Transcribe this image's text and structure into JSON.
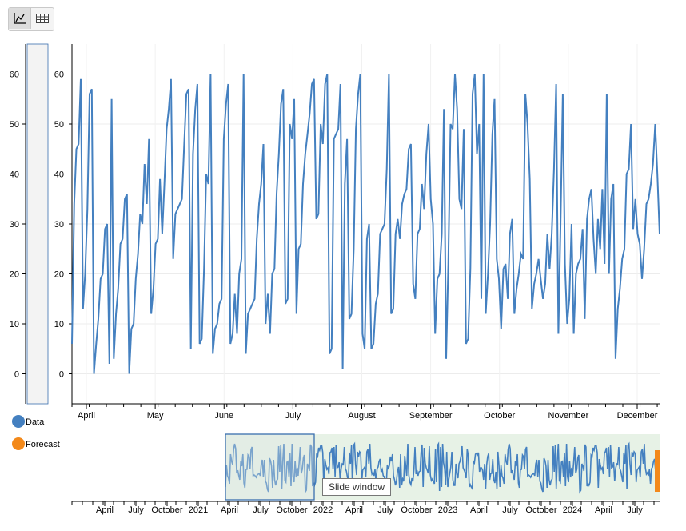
{
  "toolbar": {
    "buttons": [
      {
        "icon": "line-chart-icon",
        "active": true
      },
      {
        "icon": "table-icon",
        "active": false
      }
    ]
  },
  "legend": [
    {
      "label": "Data",
      "color": "#4480c0"
    },
    {
      "label": "Forecast",
      "color": "#f3891a"
    }
  ],
  "tooltip": "Slide window",
  "chart_data": [
    {
      "type": "line",
      "ylim": [
        -6,
        66
      ],
      "yticks": [
        0,
        10,
        20,
        30,
        40,
        50,
        60
      ],
      "xlabels": [
        "April",
        "May",
        "June",
        "July",
        "August",
        "September",
        "October",
        "November",
        "December"
      ],
      "grid": true,
      "series": [
        {
          "color": "#4480c0",
          "values": [
            6,
            34,
            45,
            46,
            59,
            13,
            20,
            33,
            56,
            57,
            0,
            6,
            11,
            19,
            20,
            29,
            30,
            2,
            55,
            3,
            12,
            17,
            26,
            27,
            35,
            36,
            0,
            9,
            10,
            19,
            24,
            32,
            30,
            42,
            34,
            47,
            12,
            17,
            26,
            27,
            39,
            28,
            38,
            49,
            53,
            59,
            23,
            32,
            33,
            34,
            35,
            46,
            56,
            57,
            5,
            44,
            53,
            58,
            6,
            7,
            21,
            40,
            38,
            60,
            4,
            9,
            10,
            14,
            15,
            47,
            54,
            58,
            6,
            8,
            16,
            8,
            20,
            23,
            60,
            4,
            12,
            13,
            14,
            15,
            27,
            34,
            38,
            46,
            10,
            16,
            8,
            20,
            21,
            36,
            44,
            54,
            57,
            14,
            15,
            50,
            47,
            55,
            12,
            25,
            26,
            38,
            44,
            48,
            52,
            58,
            59,
            31,
            32,
            50,
            46,
            58,
            60,
            4,
            5,
            47,
            48,
            49,
            58,
            1,
            38,
            47,
            11,
            12,
            25,
            49,
            56,
            60,
            8,
            5,
            27,
            30,
            5,
            6,
            14,
            16,
            28,
            29,
            30,
            41,
            60,
            12,
            13,
            28,
            31,
            27,
            34,
            36,
            37,
            45,
            46,
            18,
            15,
            28,
            29,
            38,
            33,
            44,
            50,
            35,
            30,
            8,
            19,
            20,
            28,
            53,
            3,
            22,
            50,
            49,
            60,
            53,
            35,
            33,
            49,
            6,
            7,
            21,
            56,
            60,
            44,
            50,
            15,
            60,
            12,
            20,
            30,
            48,
            55,
            23,
            19,
            9,
            21,
            22,
            15,
            28,
            31,
            12,
            17,
            20,
            24,
            23,
            56,
            50,
            39,
            13,
            18,
            20,
            23,
            19,
            15,
            18,
            28,
            21,
            28,
            41,
            58,
            8,
            30,
            56,
            22,
            10,
            15,
            30,
            8,
            20,
            22,
            23,
            29,
            11,
            31,
            35,
            37,
            27,
            20,
            31,
            25,
            37,
            22,
            56,
            20,
            35,
            38,
            3,
            13,
            17,
            23,
            25,
            40,
            41,
            50,
            29,
            35,
            28,
            26,
            19,
            25,
            34,
            35,
            38,
            42,
            50,
            40,
            28
          ]
        }
      ]
    },
    {
      "type": "line",
      "xlabels": [
        "April",
        "July",
        "October",
        "2021",
        "April",
        "July",
        "October",
        "2022",
        "April",
        "July",
        "October",
        "2023",
        "April",
        "July",
        "October",
        "2024",
        "April",
        "July"
      ],
      "series": [
        {
          "name": "Data",
          "color": "#4480c0"
        },
        {
          "name": "Forecast",
          "color": "#f3891a"
        }
      ],
      "window": {
        "start": "2021-04",
        "end": "2021-12"
      }
    }
  ]
}
